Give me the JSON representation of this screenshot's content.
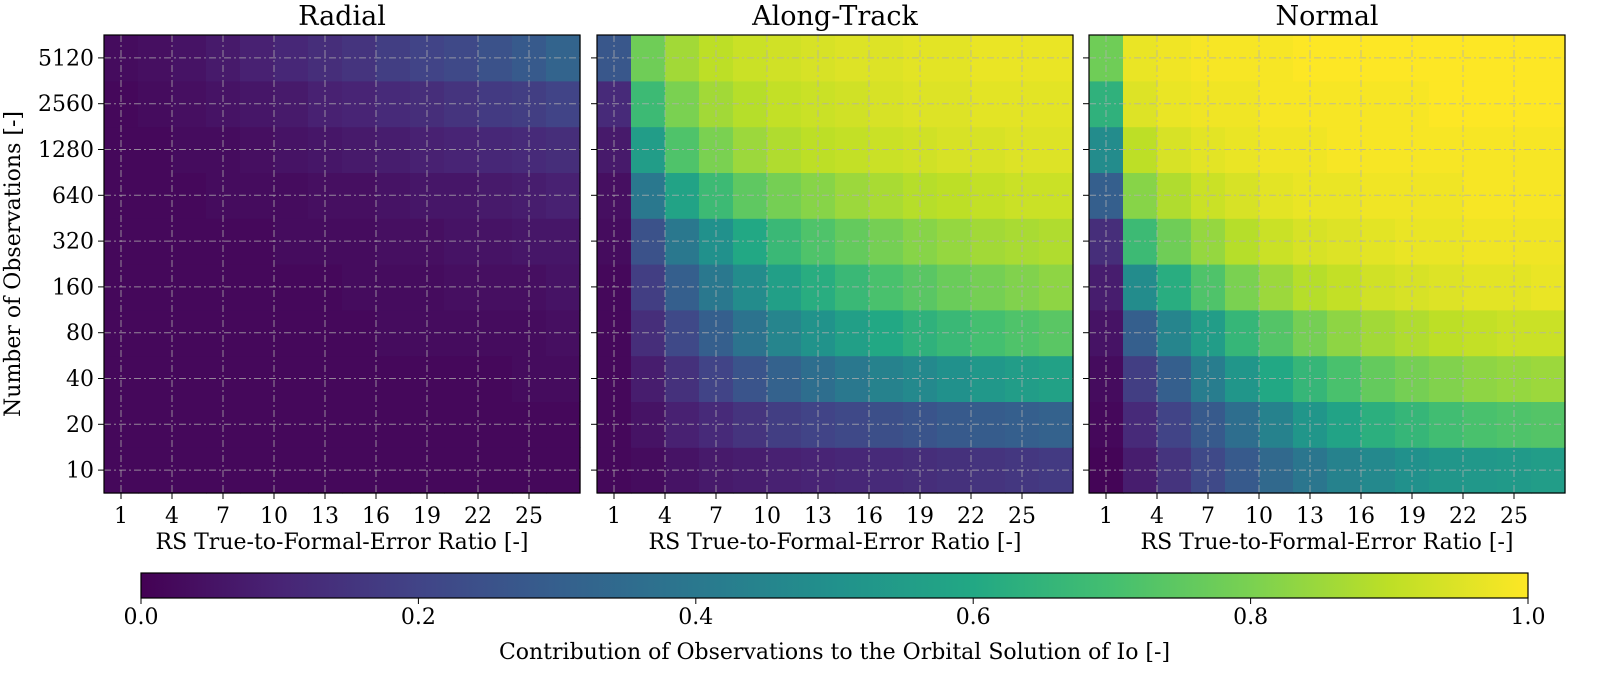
{
  "chart_data": {
    "type": "heatmap",
    "x_ticks": [
      "1",
      "4",
      "7",
      "10",
      "13",
      "16",
      "19",
      "22",
      "25"
    ],
    "y_ticks": [
      "10",
      "20",
      "40",
      "80",
      "160",
      "320",
      "640",
      "1280",
      "2560",
      "5120"
    ],
    "x_values": [
      1,
      3,
      5,
      7,
      9,
      11,
      13,
      15,
      17,
      19,
      21,
      23,
      25,
      27
    ],
    "y_values": [
      10,
      20,
      40,
      80,
      160,
      320,
      640,
      1280,
      2560,
      5120
    ],
    "x_note": "columns ordered left to right, rows ordered bottom (10) to top (5120)",
    "colormap": "viridis",
    "colorbar": {
      "range": [
        0.0,
        1.0
      ],
      "ticks": [
        "0.0",
        "0.2",
        "0.4",
        "0.6",
        "0.8",
        "1.0"
      ],
      "label": "Contribution of Observations to the Orbital Solution of Io [-]"
    },
    "panels": [
      {
        "title": "Radial",
        "xlabel": "RS True-to-Formal-Error Ratio [-]",
        "ylabel": "Number of Observations [-]",
        "values": [
          [
            0.02,
            0.02,
            0.02,
            0.02,
            0.02,
            0.02,
            0.02,
            0.02,
            0.02,
            0.02,
            0.02,
            0.02,
            0.02,
            0.02
          ],
          [
            0.02,
            0.02,
            0.02,
            0.02,
            0.02,
            0.02,
            0.02,
            0.02,
            0.02,
            0.02,
            0.02,
            0.02,
            0.02,
            0.02
          ],
          [
            0.02,
            0.02,
            0.02,
            0.02,
            0.02,
            0.02,
            0.02,
            0.02,
            0.02,
            0.02,
            0.02,
            0.02,
            0.03,
            0.03
          ],
          [
            0.02,
            0.02,
            0.02,
            0.02,
            0.02,
            0.02,
            0.02,
            0.02,
            0.03,
            0.03,
            0.03,
            0.03,
            0.03,
            0.04
          ],
          [
            0.02,
            0.02,
            0.02,
            0.02,
            0.02,
            0.02,
            0.02,
            0.03,
            0.03,
            0.03,
            0.04,
            0.04,
            0.04,
            0.05
          ],
          [
            0.02,
            0.02,
            0.02,
            0.02,
            0.02,
            0.03,
            0.03,
            0.03,
            0.04,
            0.04,
            0.05,
            0.05,
            0.06,
            0.06
          ],
          [
            0.02,
            0.02,
            0.02,
            0.03,
            0.03,
            0.03,
            0.04,
            0.04,
            0.05,
            0.06,
            0.06,
            0.07,
            0.08,
            0.09
          ],
          [
            0.02,
            0.02,
            0.03,
            0.03,
            0.04,
            0.05,
            0.06,
            0.07,
            0.08,
            0.09,
            0.1,
            0.11,
            0.12,
            0.13
          ],
          [
            0.02,
            0.03,
            0.04,
            0.05,
            0.06,
            0.07,
            0.09,
            0.1,
            0.12,
            0.13,
            0.15,
            0.17,
            0.18,
            0.2
          ],
          [
            0.03,
            0.04,
            0.05,
            0.07,
            0.09,
            0.11,
            0.13,
            0.15,
            0.18,
            0.2,
            0.22,
            0.25,
            0.28,
            0.32
          ]
        ]
      },
      {
        "title": "Along-Track",
        "xlabel": "RS True-to-Formal-Error Ratio [-]",
        "ylabel": "",
        "values": [
          [
            0.02,
            0.03,
            0.05,
            0.07,
            0.08,
            0.09,
            0.1,
            0.11,
            0.12,
            0.13,
            0.14,
            0.15,
            0.16,
            0.17
          ],
          [
            0.02,
            0.05,
            0.09,
            0.12,
            0.15,
            0.18,
            0.2,
            0.22,
            0.24,
            0.26,
            0.28,
            0.29,
            0.3,
            0.31
          ],
          [
            0.02,
            0.08,
            0.14,
            0.2,
            0.26,
            0.31,
            0.36,
            0.4,
            0.44,
            0.47,
            0.5,
            0.53,
            0.55,
            0.57
          ],
          [
            0.02,
            0.13,
            0.22,
            0.3,
            0.38,
            0.45,
            0.51,
            0.56,
            0.6,
            0.64,
            0.67,
            0.7,
            0.72,
            0.74
          ],
          [
            0.02,
            0.18,
            0.3,
            0.4,
            0.48,
            0.56,
            0.62,
            0.67,
            0.71,
            0.74,
            0.77,
            0.79,
            0.81,
            0.83
          ],
          [
            0.03,
            0.25,
            0.4,
            0.5,
            0.6,
            0.67,
            0.72,
            0.76,
            0.79,
            0.82,
            0.84,
            0.86,
            0.87,
            0.88
          ],
          [
            0.04,
            0.4,
            0.58,
            0.68,
            0.75,
            0.79,
            0.82,
            0.85,
            0.87,
            0.89,
            0.9,
            0.91,
            0.92,
            0.92
          ],
          [
            0.07,
            0.55,
            0.72,
            0.8,
            0.85,
            0.88,
            0.9,
            0.91,
            0.92,
            0.93,
            0.94,
            0.94,
            0.95,
            0.95
          ],
          [
            0.12,
            0.68,
            0.8,
            0.86,
            0.89,
            0.91,
            0.92,
            0.93,
            0.94,
            0.95,
            0.95,
            0.96,
            0.96,
            0.96
          ],
          [
            0.27,
            0.78,
            0.86,
            0.9,
            0.92,
            0.93,
            0.94,
            0.95,
            0.95,
            0.96,
            0.96,
            0.97,
            0.97,
            0.97
          ]
        ]
      },
      {
        "title": "Normal",
        "xlabel": "RS True-to-Formal-Error Ratio [-]",
        "ylabel": "",
        "values": [
          [
            0.01,
            0.08,
            0.15,
            0.22,
            0.28,
            0.34,
            0.39,
            0.44,
            0.47,
            0.5,
            0.52,
            0.53,
            0.54,
            0.55
          ],
          [
            0.02,
            0.12,
            0.2,
            0.28,
            0.36,
            0.44,
            0.52,
            0.58,
            0.63,
            0.66,
            0.69,
            0.71,
            0.72,
            0.73
          ],
          [
            0.03,
            0.18,
            0.3,
            0.42,
            0.52,
            0.6,
            0.66,
            0.71,
            0.76,
            0.79,
            0.81,
            0.83,
            0.84,
            0.85
          ],
          [
            0.05,
            0.3,
            0.45,
            0.55,
            0.66,
            0.73,
            0.79,
            0.83,
            0.86,
            0.88,
            0.9,
            0.91,
            0.92,
            0.92
          ],
          [
            0.08,
            0.48,
            0.62,
            0.72,
            0.8,
            0.85,
            0.89,
            0.91,
            0.93,
            0.94,
            0.95,
            0.96,
            0.96,
            0.97
          ],
          [
            0.13,
            0.68,
            0.78,
            0.84,
            0.89,
            0.92,
            0.94,
            0.95,
            0.96,
            0.97,
            0.97,
            0.98,
            0.98,
            0.98
          ],
          [
            0.3,
            0.82,
            0.88,
            0.92,
            0.94,
            0.96,
            0.97,
            0.97,
            0.98,
            0.98,
            0.98,
            0.99,
            0.99,
            0.99
          ],
          [
            0.48,
            0.9,
            0.94,
            0.96,
            0.97,
            0.98,
            0.98,
            0.99,
            0.99,
            0.99,
            0.99,
            0.99,
            0.99,
            0.99
          ],
          [
            0.64,
            0.95,
            0.97,
            0.98,
            0.98,
            0.99,
            0.99,
            0.99,
            0.99,
            0.99,
            1.0,
            1.0,
            1.0,
            1.0
          ],
          [
            0.78,
            0.97,
            0.98,
            0.99,
            0.99,
            0.99,
            1.0,
            1.0,
            1.0,
            1.0,
            1.0,
            1.0,
            1.0,
            1.0
          ]
        ]
      }
    ]
  }
}
